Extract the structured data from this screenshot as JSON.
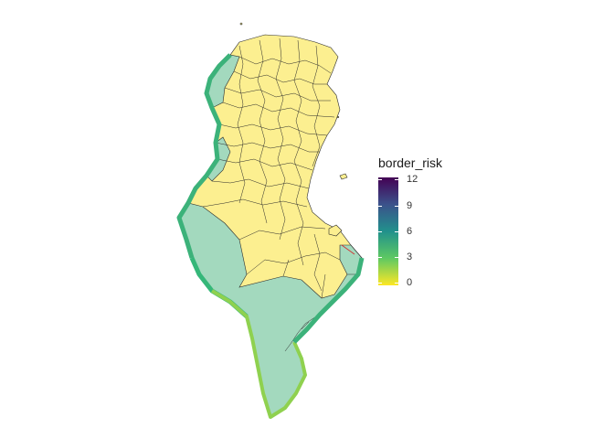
{
  "legend": {
    "title": "border_risk",
    "ticks": [
      "12",
      "9",
      "6",
      "3",
      "0"
    ],
    "range": [
      0,
      12
    ],
    "palette": [
      "#fde725",
      "#5ec962",
      "#21918c",
      "#3b528b",
      "#440154"
    ]
  },
  "colors": {
    "interior_fill": "#fcef90",
    "border_zone_fill": "#a3d9be",
    "region_stroke": "#2b2b2b",
    "border_line_north": "#3cb27a",
    "border_line_south": "#8fd14f"
  }
}
